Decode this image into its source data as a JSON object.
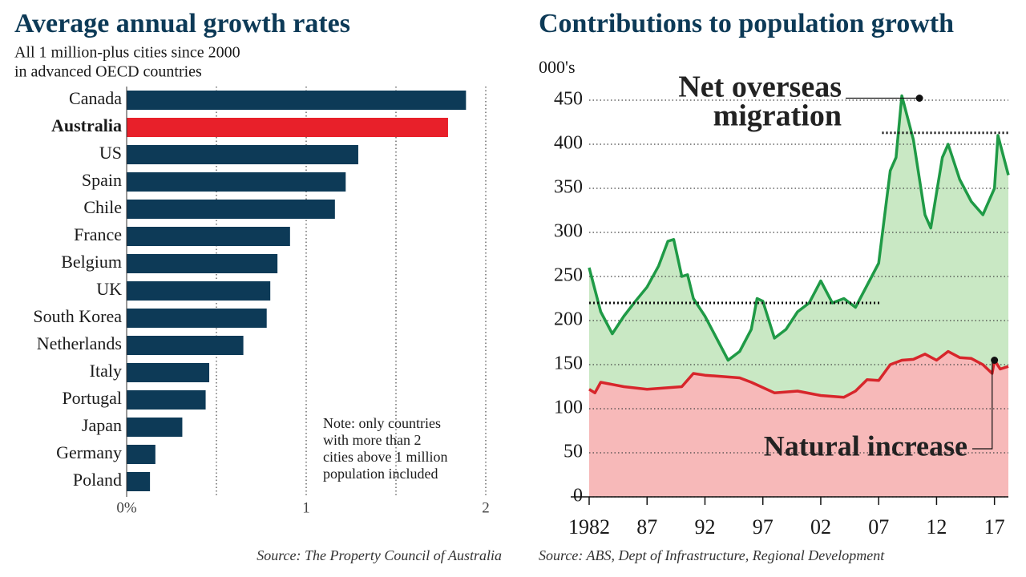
{
  "chart_data": [
    {
      "type": "bar",
      "orientation": "horizontal",
      "title": "Average annual growth rates",
      "subtitle": [
        "All 1 million-plus cities since 2000",
        "in advanced OECD countries"
      ],
      "categories": [
        "Canada",
        "Australia",
        "US",
        "Spain",
        "Chile",
        "France",
        "Belgium",
        "UK",
        "South Korea",
        "Netherlands",
        "Italy",
        "Portugal",
        "Japan",
        "Germany",
        "Poland"
      ],
      "values": [
        1.89,
        1.79,
        1.29,
        1.22,
        1.16,
        0.91,
        0.84,
        0.8,
        0.78,
        0.65,
        0.46,
        0.44,
        0.31,
        0.16,
        0.13
      ],
      "color": "#0d3a57",
      "highlight": 1,
      "highlight_color": "#e8202a",
      "xlim": [
        0,
        2
      ],
      "xticks": [
        {
          "value": 0,
          "label": "0%"
        },
        1,
        2
      ],
      "grid_lines": [
        0.5,
        1,
        1.5,
        2
      ],
      "note": [
        "Note: only countries",
        "with more than 2",
        "cities above 1 million",
        "population included"
      ],
      "source": "Source: The Property Council of Australia"
    },
    {
      "type": "area",
      "title": "Contributions to population growth",
      "ylabel": "000's",
      "xlim": [
        1982,
        2018.2
      ],
      "ylim": [
        0,
        470
      ],
      "xticks": [
        {
          "value": 1982,
          "label": "1982"
        },
        {
          "value": 1987,
          "label": "87"
        },
        {
          "value": 1992,
          "label": "92"
        },
        {
          "value": 1997,
          "label": "97"
        },
        {
          "value": 2002,
          "label": "02"
        },
        {
          "value": 2007,
          "label": "07"
        },
        {
          "value": 2012,
          "label": "12"
        },
        {
          "value": 2017,
          "label": "17"
        }
      ],
      "yticks": [
        0,
        50,
        100,
        150,
        200,
        250,
        300,
        350,
        400,
        450
      ],
      "grid": true,
      "series": [
        {
          "name": "Net overseas migration",
          "label_lines": [
            "Net overseas",
            "migration"
          ],
          "color": "#1f9a46",
          "fill": "#c9e8c4",
          "x": [
            1982,
            1982.5,
            1983,
            1984,
            1985,
            1986,
            1987,
            1988,
            1988.8,
            1989.3,
            1990,
            1990.5,
            1991,
            1992,
            1993,
            1994,
            1995,
            1996,
            1996.5,
            1997,
            1998,
            1999,
            2000,
            2001,
            2002,
            2003,
            2004,
            2005,
            2006,
            2007,
            2008,
            2008.5,
            2009,
            2010,
            2011,
            2011.5,
            2012.5,
            2013,
            2014,
            2015,
            2016,
            2017,
            2017.3,
            2018.2
          ],
          "values": [
            260,
            235,
            210,
            185,
            205,
            222,
            238,
            262,
            290,
            292,
            250,
            252,
            225,
            205,
            180,
            155,
            165,
            190,
            225,
            222,
            180,
            190,
            210,
            220,
            245,
            220,
            225,
            215,
            240,
            265,
            370,
            385,
            455,
            405,
            320,
            305,
            385,
            400,
            360,
            335,
            320,
            350,
            410,
            365
          ]
        },
        {
          "name": "Natural increase",
          "color": "#d7262b",
          "fill": "#f7b9b9",
          "x": [
            1982,
            1982.5,
            1983,
            1985,
            1987,
            1990,
            1991,
            1992,
            1995,
            1996,
            1998,
            2000,
            2002,
            2004,
            2005,
            2006,
            2007,
            2008,
            2009,
            2010,
            2011,
            2012,
            2013,
            2014,
            2015,
            2016,
            2016.8,
            2017,
            2017.5,
            2018.2
          ],
          "values": [
            122,
            118,
            130,
            125,
            122,
            125,
            140,
            138,
            135,
            130,
            118,
            120,
            115,
            113,
            120,
            133,
            132,
            150,
            155,
            156,
            162,
            155,
            165,
            158,
            157,
            150,
            140,
            155,
            145,
            148
          ]
        }
      ],
      "reference_lines": [
        {
          "value": 220,
          "x": [
            1982,
            2007.1
          ]
        },
        {
          "value": 413,
          "x": [
            2007.3,
            2018.2
          ]
        }
      ],
      "source": "Source: ABS, Dept of Infrastructure, Regional Development"
    }
  ]
}
